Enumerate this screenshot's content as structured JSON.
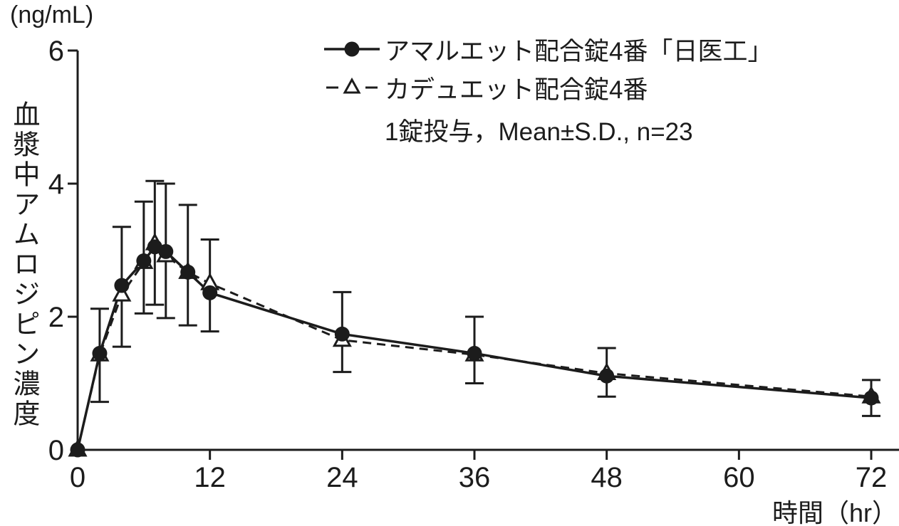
{
  "colors": {
    "ink": "#1c1c1c",
    "background": "#ffffff"
  },
  "chart_data": {
    "type": "line",
    "title": "",
    "y_unit": "(ng/mL)",
    "ylabel": "血漿中アムロジピン濃度",
    "xlabel": "時間（hr）",
    "note": "1錠投与，Mean±S.D., n=23",
    "legend_position": "top",
    "grid": false,
    "xlim": [
      0,
      72
    ],
    "ylim": [
      0,
      6
    ],
    "x_ticks": [
      0,
      12,
      24,
      36,
      48,
      60,
      72
    ],
    "y_ticks": [
      0,
      2,
      4,
      6
    ],
    "x": [
      0,
      2,
      4,
      6,
      7,
      8,
      10,
      12,
      24,
      36,
      48,
      72
    ],
    "series": [
      {
        "name": "アマルエット配合錠4番「日医工」",
        "marker": "filled-circle",
        "line_style": "solid",
        "color": "#1c1c1c",
        "values": [
          0,
          1.45,
          2.47,
          2.84,
          3.05,
          2.98,
          2.67,
          2.36,
          1.74,
          1.45,
          1.11,
          0.78
        ]
      },
      {
        "name": "カデュエット配合錠4番",
        "marker": "open-triangle",
        "line_style": "dashed",
        "color": "#1c1c1c",
        "values": [
          0,
          1.43,
          2.33,
          2.82,
          3.1,
          2.92,
          2.67,
          2.5,
          1.65,
          1.43,
          1.15,
          0.8
        ]
      }
    ],
    "error_bars": {
      "x": [
        2,
        4,
        6,
        7,
        8,
        10,
        12,
        24,
        36,
        48,
        72
      ],
      "low": [
        0.72,
        1.55,
        2.05,
        2.18,
        1.98,
        1.87,
        1.78,
        1.17,
        1.0,
        0.8,
        0.51
      ],
      "high": [
        2.12,
        3.35,
        3.73,
        4.04,
        4.0,
        3.68,
        3.16,
        2.37,
        2.0,
        1.53,
        1.05
      ]
    }
  }
}
